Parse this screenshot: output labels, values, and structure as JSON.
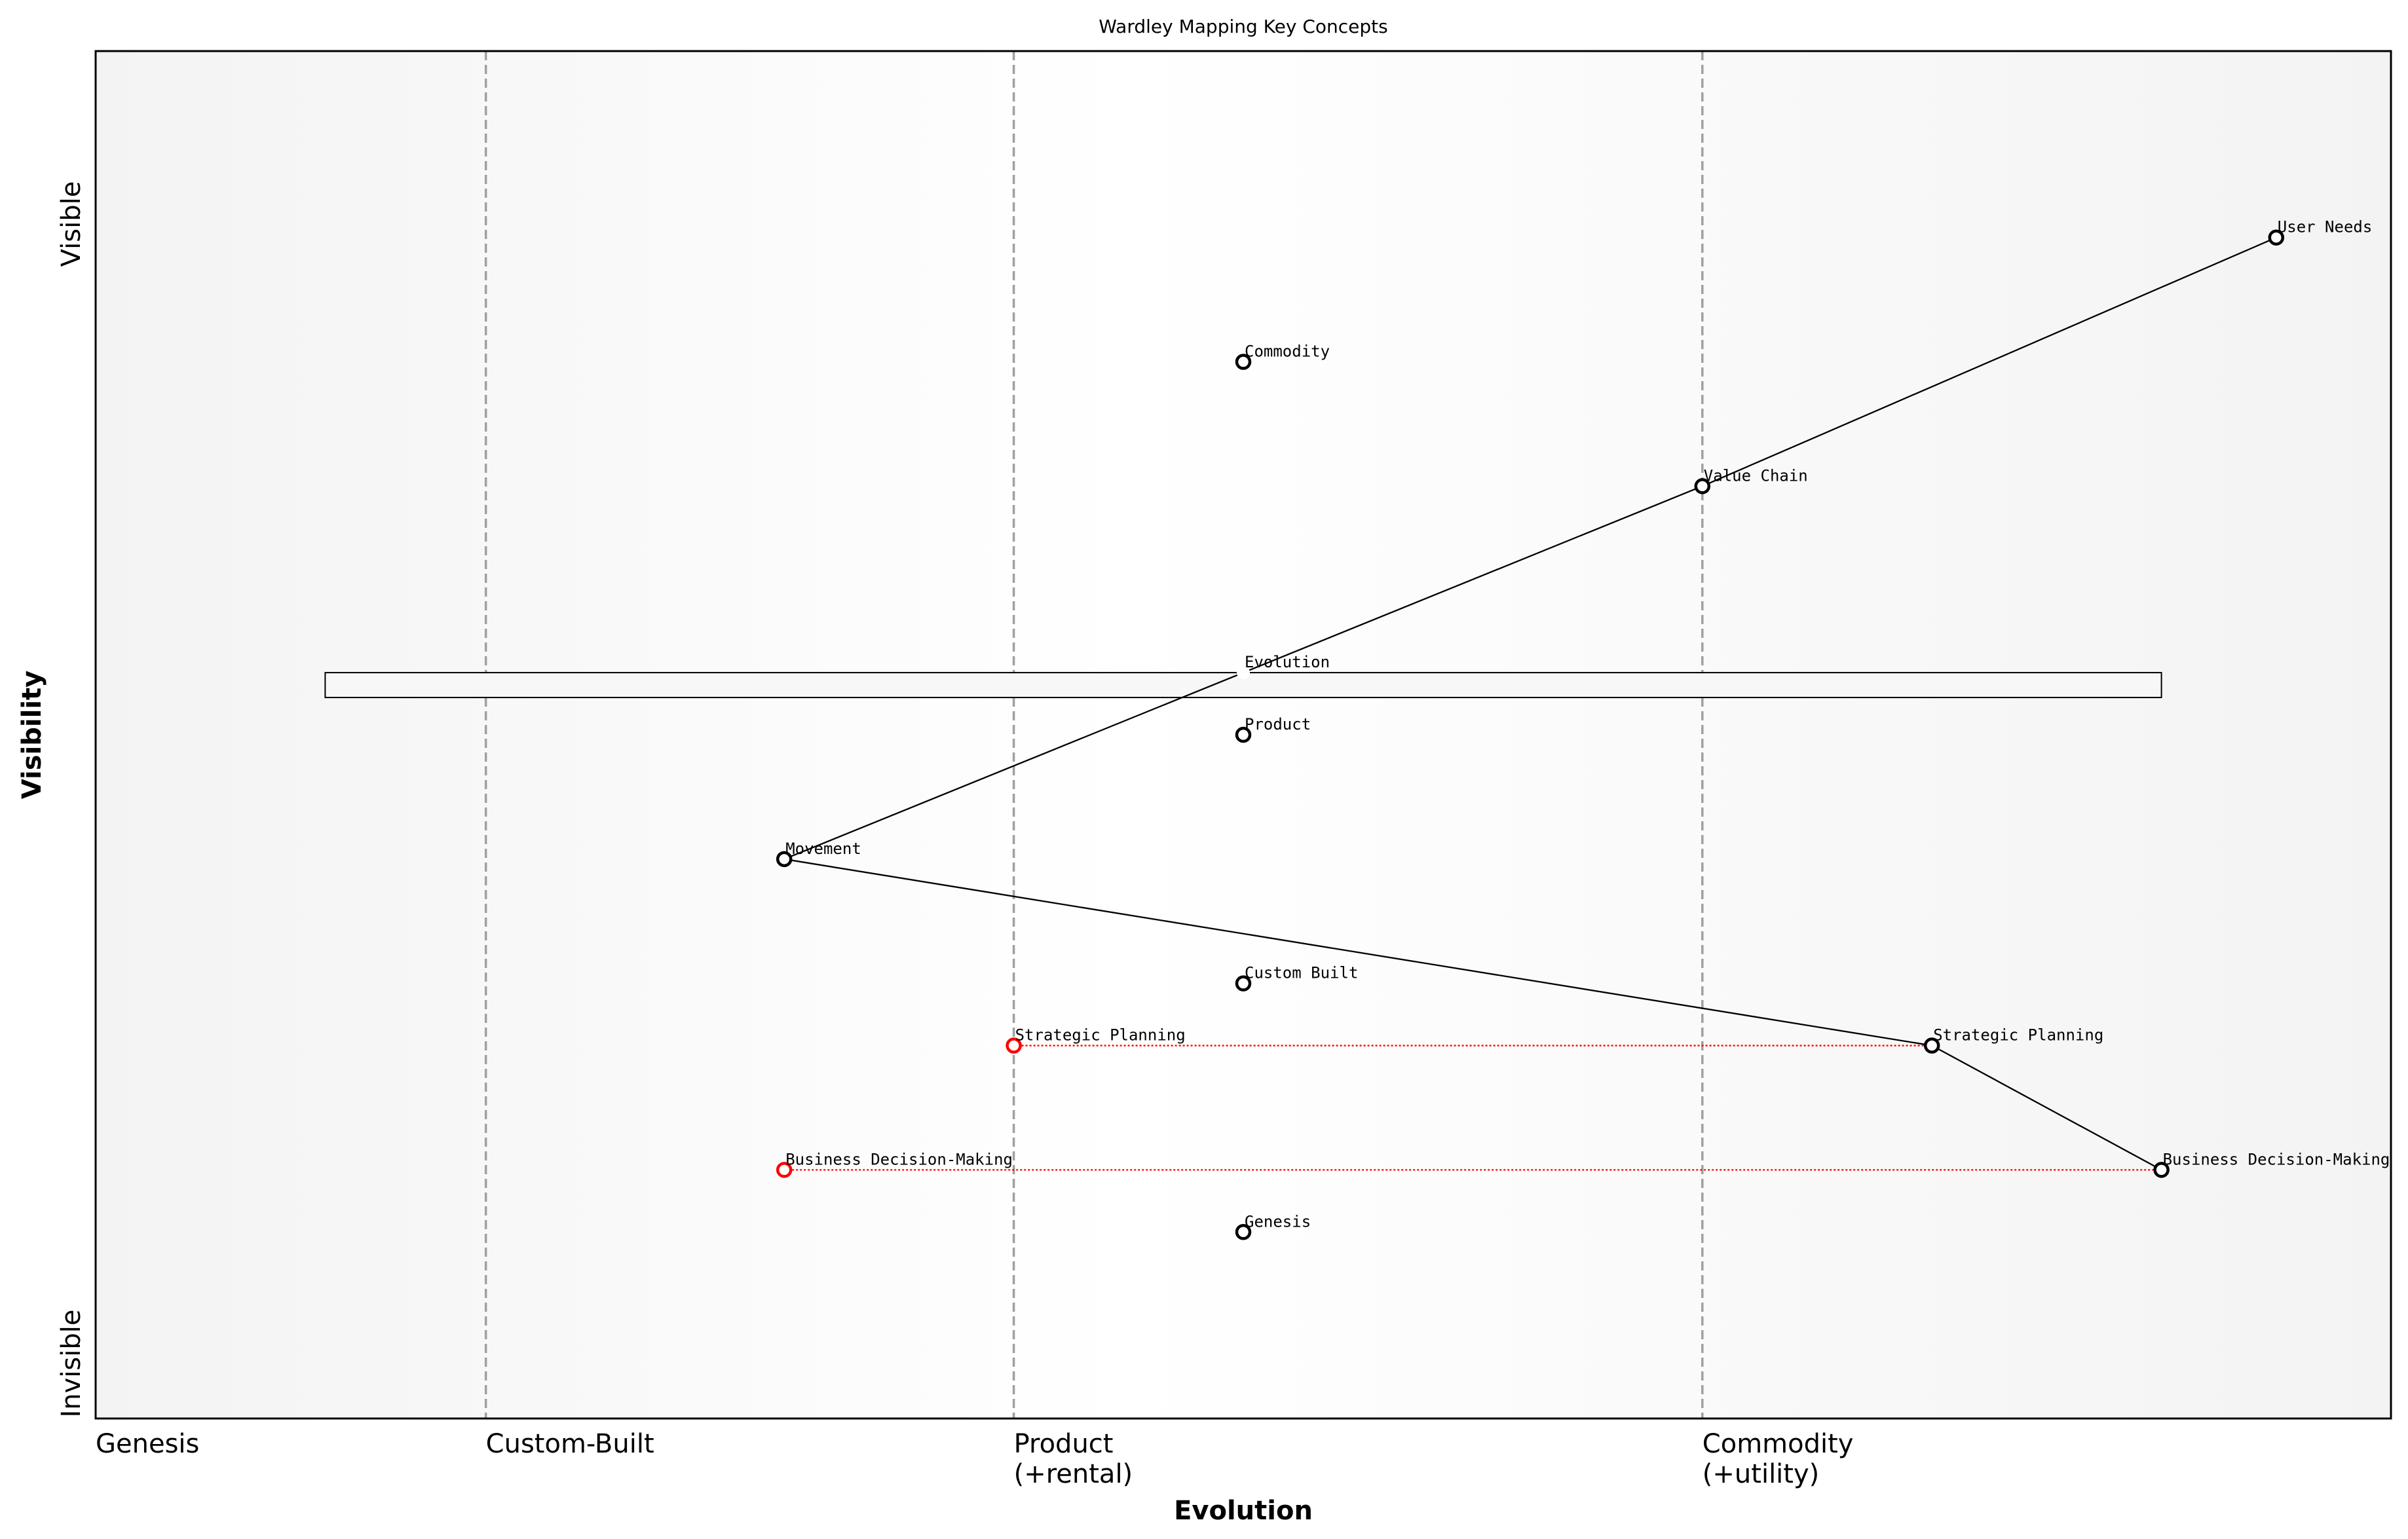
{
  "chart_data": {
    "type": "diagram",
    "title": "Wardley Mapping Key Concepts",
    "xlabel": "Evolution",
    "ylabel": "Visibility",
    "xlim": [
      0,
      1
    ],
    "ylim": [
      0,
      1.1
    ],
    "grid": false,
    "stages": [
      {
        "x": 0.0,
        "label": "Genesis",
        "line": false
      },
      {
        "x": 0.17,
        "label": "Custom-Built",
        "line": true
      },
      {
        "x": 0.4,
        "label": "Product",
        "sub": "(+rental)",
        "line": true
      },
      {
        "x": 0.7,
        "label": "Commodity",
        "sub": "(+utility)",
        "line": true
      }
    ],
    "y_labels": {
      "top": "Visible",
      "bottom": "Invisible"
    },
    "pipeline": {
      "x_start": 0.1,
      "x_end": 0.9,
      "y_low": 0.58,
      "y_high": 0.6
    },
    "components": [
      {
        "name": "User Needs",
        "x": 0.95,
        "y": 0.95,
        "color": "#000000"
      },
      {
        "name": "Commodity",
        "x": 0.5,
        "y": 0.85,
        "color": "#000000"
      },
      {
        "name": "Value Chain",
        "x": 0.7,
        "y": 0.75,
        "color": "#000000"
      },
      {
        "name": "Evolution",
        "x": 0.5,
        "y": 0.6,
        "color": "#ffffff"
      },
      {
        "name": "Product",
        "x": 0.5,
        "y": 0.55,
        "color": "#000000"
      },
      {
        "name": "Movement",
        "x": 0.3,
        "y": 0.45,
        "color": "#000000"
      },
      {
        "name": "Custom Built",
        "x": 0.5,
        "y": 0.35,
        "color": "#000000"
      },
      {
        "name": "Strategic Planning",
        "x": 0.8,
        "y": 0.3,
        "color": "#000000"
      },
      {
        "name": "Business Decision-Making",
        "x": 0.9,
        "y": 0.2,
        "color": "#000000"
      },
      {
        "name": "Genesis",
        "x": 0.5,
        "y": 0.15,
        "color": "#000000"
      },
      {
        "name": "Strategic Planning",
        "x": 0.4,
        "y": 0.3,
        "color": "#ff0000"
      },
      {
        "name": "Business Decision-Making",
        "x": 0.3,
        "y": 0.2,
        "color": "#ff0000"
      }
    ],
    "links": [
      [
        0,
        2
      ],
      [
        2,
        5
      ],
      [
        5,
        7
      ],
      [
        7,
        8
      ]
    ],
    "evolution_links": [
      [
        10,
        7
      ],
      [
        11,
        8
      ]
    ],
    "colors": {
      "link": "#000000",
      "evolution_link": "#ff0000",
      "stage_line": "#a0a0a0",
      "background_edge": "#f3f3f3",
      "background_center": "#ffffff"
    }
  }
}
